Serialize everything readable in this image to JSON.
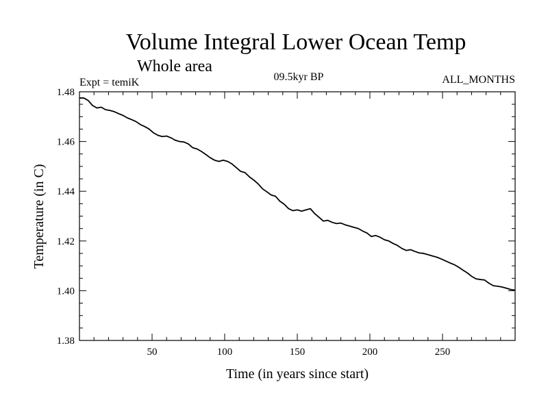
{
  "chart_data": {
    "type": "line",
    "title": "Volume Integral Lower Ocean Temp",
    "subtitle": "Whole area",
    "period_label": "09.5kyr BP",
    "months_label": "ALL_MONTHS",
    "experiment_label": "Expt = temiK",
    "xlabel": "Time (in years since start)",
    "ylabel": "Temperature (in C)",
    "xlim": [
      0,
      300
    ],
    "ylim": [
      1.38,
      1.48
    ],
    "x_major_ticks": [
      50,
      100,
      150,
      200,
      250
    ],
    "x_tick_labels": [
      "50",
      "100",
      "150",
      "200",
      "250"
    ],
    "y_major_ticks": [
      1.38,
      1.4,
      1.42,
      1.44,
      1.46,
      1.48
    ],
    "y_tick_labels": [
      "1.38",
      "1.40",
      "1.42",
      "1.44",
      "1.46",
      "1.48"
    ],
    "grid": false,
    "series": [
      {
        "name": "Lower Ocean Temp",
        "color": "#000000",
        "x": [
          0,
          3,
          6,
          9,
          12,
          15,
          18,
          21,
          24,
          27,
          30,
          33,
          36,
          39,
          42,
          45,
          48,
          51,
          54,
          57,
          60,
          63,
          66,
          69,
          72,
          75,
          78,
          81,
          84,
          87,
          90,
          93,
          96,
          99,
          102,
          105,
          108,
          111,
          114,
          117,
          120,
          123,
          126,
          129,
          132,
          135,
          138,
          141,
          144,
          147,
          150,
          153,
          156,
          159,
          162,
          165,
          168,
          171,
          174,
          177,
          180,
          183,
          186,
          189,
          192,
          195,
          198,
          201,
          204,
          207,
          210,
          213,
          216,
          219,
          222,
          225,
          228,
          231,
          234,
          237,
          240,
          243,
          246,
          249,
          252,
          255,
          258,
          261,
          264,
          267,
          270,
          273,
          276,
          279,
          282,
          285,
          288,
          291,
          294,
          297,
          300
        ],
        "y": [
          1.4775,
          1.4775,
          1.4765,
          1.4745,
          1.4735,
          1.4738,
          1.4728,
          1.4725,
          1.472,
          1.4712,
          1.4705,
          1.4695,
          1.4688,
          1.468,
          1.4668,
          1.466,
          1.465,
          1.4635,
          1.4625,
          1.462,
          1.4622,
          1.4615,
          1.4605,
          1.46,
          1.4598,
          1.459,
          1.4575,
          1.457,
          1.456,
          1.4548,
          1.4535,
          1.4525,
          1.452,
          1.4525,
          1.452,
          1.451,
          1.4495,
          1.448,
          1.4475,
          1.4458,
          1.4445,
          1.443,
          1.441,
          1.4398,
          1.4385,
          1.438,
          1.436,
          1.4348,
          1.433,
          1.4322,
          1.4325,
          1.432,
          1.4325,
          1.433,
          1.431,
          1.4295,
          1.428,
          1.4283,
          1.4275,
          1.427,
          1.4272,
          1.4265,
          1.426,
          1.4255,
          1.425,
          1.424,
          1.4232,
          1.4218,
          1.4222,
          1.4215,
          1.4205,
          1.42,
          1.419,
          1.4182,
          1.417,
          1.4162,
          1.4165,
          1.4158,
          1.4152,
          1.415,
          1.4145,
          1.414,
          1.4135,
          1.4128,
          1.412,
          1.4112,
          1.4105,
          1.4095,
          1.4083,
          1.4072,
          1.4058,
          1.4048,
          1.4045,
          1.4043,
          1.403,
          1.402,
          1.4018,
          1.4015,
          1.401,
          1.4005,
          1.4002
        ]
      }
    ]
  }
}
